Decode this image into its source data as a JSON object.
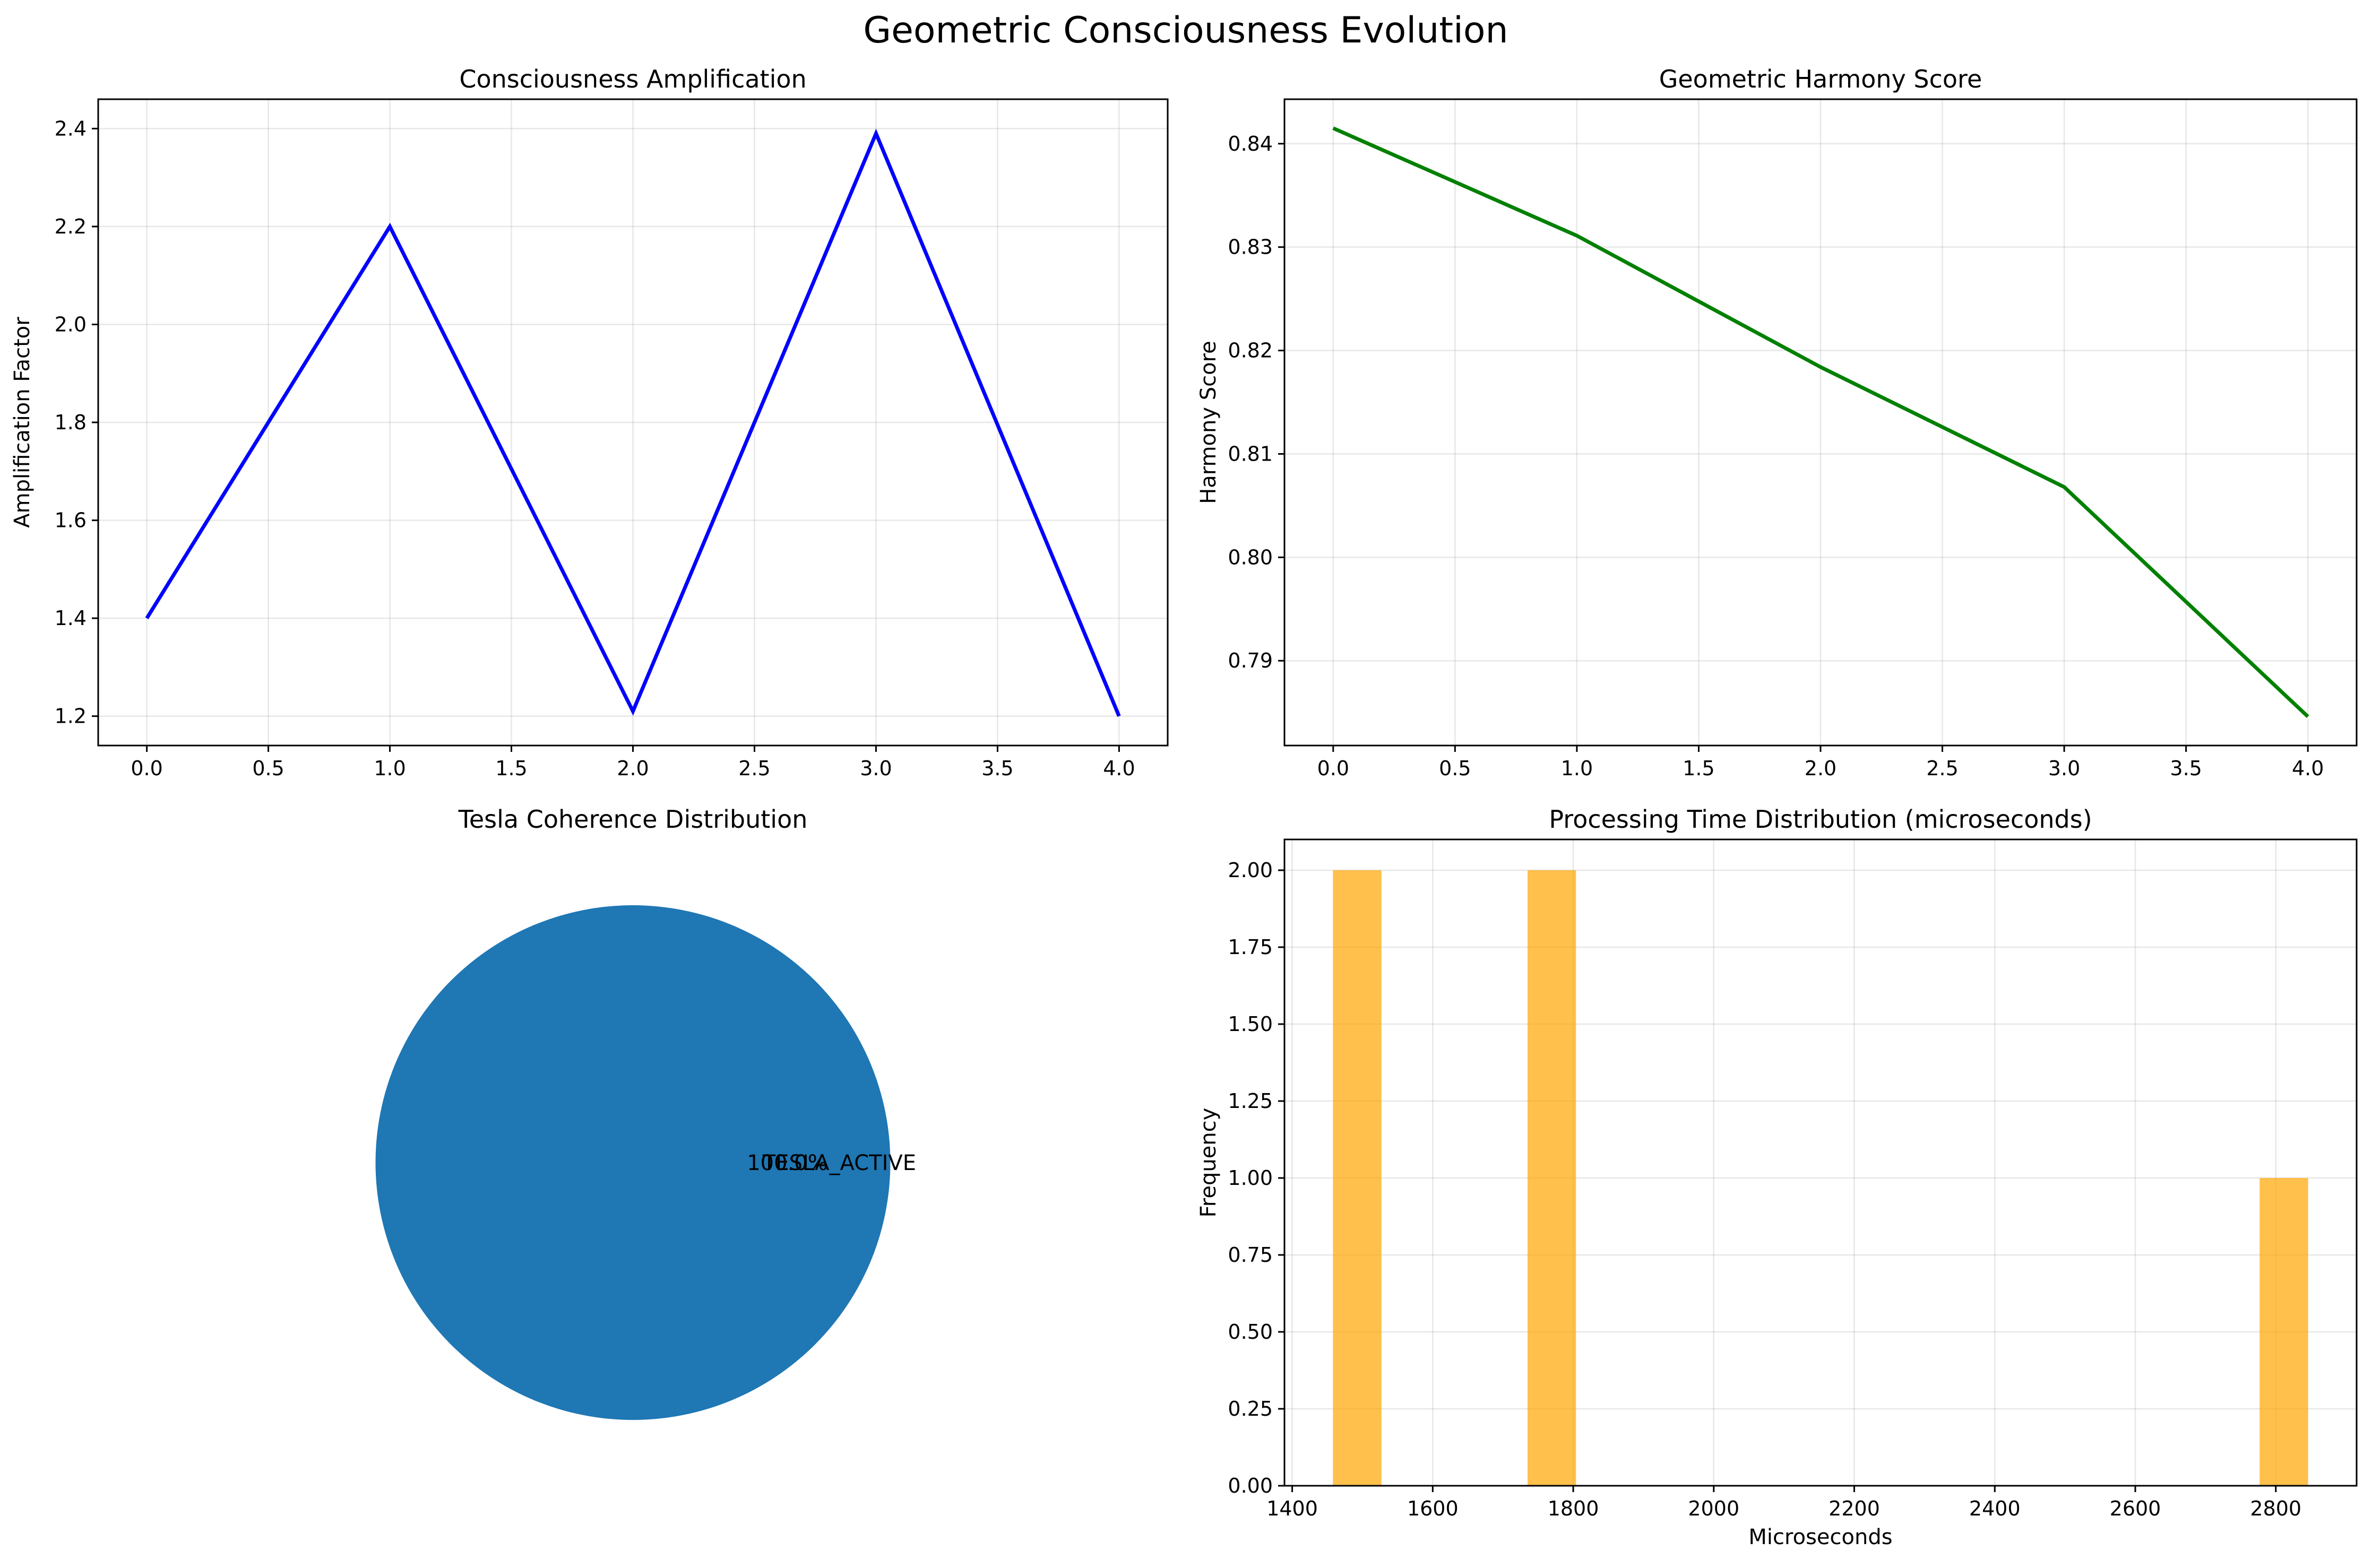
{
  "figure": {
    "title": "Geometric Consciousness Evolution"
  },
  "chart_data": [
    {
      "type": "line",
      "title": "Consciousness Amplification",
      "xlabel": "",
      "ylabel": "Amplification Factor",
      "x": [
        0,
        1,
        2,
        3,
        4
      ],
      "series": [
        {
          "values": [
            1.4,
            2.2,
            1.21,
            2.39,
            1.2
          ],
          "color": "#0000ff"
        }
      ],
      "xlim": [
        -0.2,
        4.2
      ],
      "ylim": [
        1.14,
        2.46
      ],
      "xticks": [
        "0.0",
        "0.5",
        "1.0",
        "1.5",
        "2.0",
        "2.5",
        "3.0",
        "3.5",
        "4.0"
      ],
      "yticks": [
        "1.2",
        "1.4",
        "1.6",
        "1.8",
        "2.0",
        "2.2",
        "2.4"
      ],
      "grid": true
    },
    {
      "type": "line",
      "title": "Geometric Harmony Score",
      "xlabel": "",
      "ylabel": "Harmony Score",
      "x": [
        0,
        1,
        2,
        3,
        4
      ],
      "series": [
        {
          "values": [
            0.8415,
            0.8311,
            0.8184,
            0.8068,
            0.7846
          ],
          "color": "#008000"
        }
      ],
      "xlim": [
        -0.2,
        4.2
      ],
      "ylim": [
        0.7818,
        0.8443
      ],
      "xticks": [
        "0.0",
        "0.5",
        "1.0",
        "1.5",
        "2.0",
        "2.5",
        "3.0",
        "3.5",
        "4.0"
      ],
      "yticks": [
        "0.79",
        "0.80",
        "0.81",
        "0.82",
        "0.83",
        "0.84"
      ],
      "grid": true
    },
    {
      "type": "pie",
      "title": "Tesla Coherence Distribution",
      "labels": [
        "TESLA_ACTIVE"
      ],
      "values": [
        100
      ],
      "autopct": [
        "100.0%"
      ],
      "colors": [
        "#1f77b4"
      ]
    },
    {
      "type": "bar",
      "title": "Processing Time Distribution (microseconds)",
      "xlabel": "Microseconds",
      "ylabel": "Frequency",
      "bins": [
        {
          "start": 1458,
          "end": 1527,
          "count": 2
        },
        {
          "start": 1735,
          "end": 1804,
          "count": 2
        },
        {
          "start": 2777,
          "end": 2846,
          "count": 1
        }
      ],
      "color": "#ffa500",
      "xlim": [
        1389,
        2915
      ],
      "ylim": [
        0,
        2.1
      ],
      "xticks": [
        "1400",
        "1600",
        "1800",
        "2000",
        "2200",
        "2400",
        "2600",
        "2800"
      ],
      "yticks": [
        "0.00",
        "0.25",
        "0.50",
        "0.75",
        "1.00",
        "1.25",
        "1.50",
        "1.75",
        "2.00"
      ],
      "grid": true
    }
  ]
}
